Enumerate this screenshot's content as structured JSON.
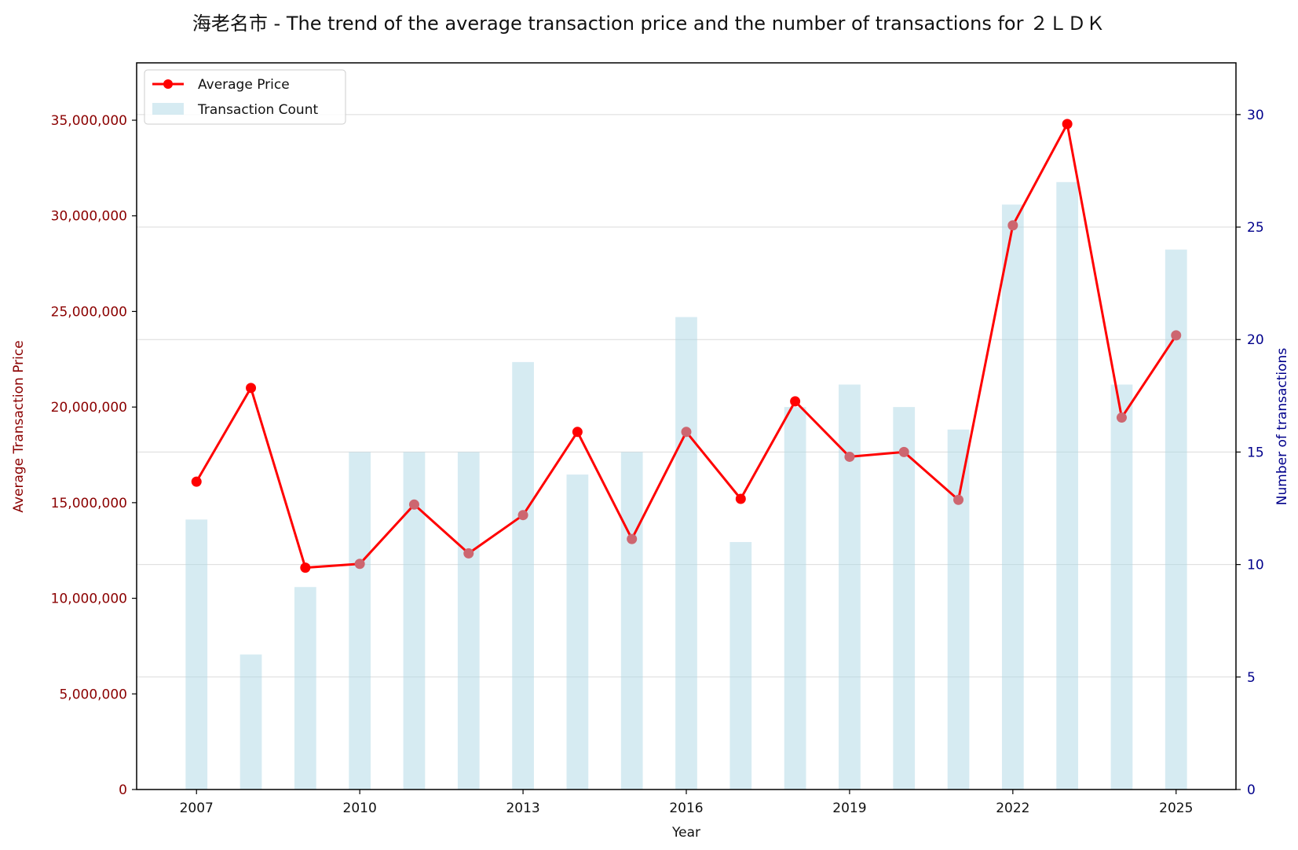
{
  "chart_data": {
    "type": "bar+line",
    "title": "海老名市 - The trend of the average transaction price and the number of transactions for ２ＬＤＫ",
    "xlabel": "Year",
    "ylabel_left": "Average Transaction Price",
    "ylabel_right": "Number of transactions",
    "x": [
      2007,
      2008,
      2009,
      2010,
      2011,
      2012,
      2013,
      2014,
      2015,
      2016,
      2017,
      2018,
      2019,
      2020,
      2021,
      2022,
      2023,
      2024,
      2025
    ],
    "series": [
      {
        "name": "Average Price",
        "type": "line",
        "axis": "left",
        "color": "#ff0000",
        "values": [
          16100000,
          21000000,
          11600000,
          11800000,
          14900000,
          12350000,
          14350000,
          18700000,
          13100000,
          18700000,
          15200000,
          20300000,
          17400000,
          17650000,
          15150000,
          29500000,
          34800000,
          19450000,
          23750000
        ]
      },
      {
        "name": "Transaction Count",
        "type": "bar",
        "axis": "right",
        "color": "#add8e6",
        "values": [
          12,
          6,
          9,
          15,
          15,
          15,
          19,
          14,
          15,
          21,
          11,
          17,
          18,
          17,
          16,
          26,
          27,
          18,
          24
        ]
      }
    ],
    "xlim": [
      2005.9,
      2026.1
    ],
    "ylim_left": [
      0,
      38000000
    ],
    "ylim_right": [
      0,
      32.3
    ],
    "xticks": [
      2007,
      2010,
      2013,
      2016,
      2019,
      2022,
      2025
    ],
    "xtick_labels": [
      "2007",
      "2010",
      "2013",
      "2016",
      "2019",
      "2022",
      "2025"
    ],
    "yticks_left": [
      0,
      5000000,
      10000000,
      15000000,
      20000000,
      25000000,
      30000000,
      35000000
    ],
    "ytick_labels_left": [
      "0",
      "5,000,000",
      "10,000,000",
      "15,000,000",
      "20,000,000",
      "25,000,000",
      "30,000,000",
      "35,000,000"
    ],
    "yticks_right": [
      0,
      5,
      10,
      15,
      20,
      25,
      30
    ],
    "ytick_labels_right": [
      "0",
      "5",
      "10",
      "15",
      "20",
      "25",
      "30"
    ],
    "grid": "horizontal",
    "legend_position": "top-left",
    "colors": {
      "left_axis": "#8b0000",
      "right_axis": "#00008b",
      "point_faded": "#cd6670"
    }
  }
}
